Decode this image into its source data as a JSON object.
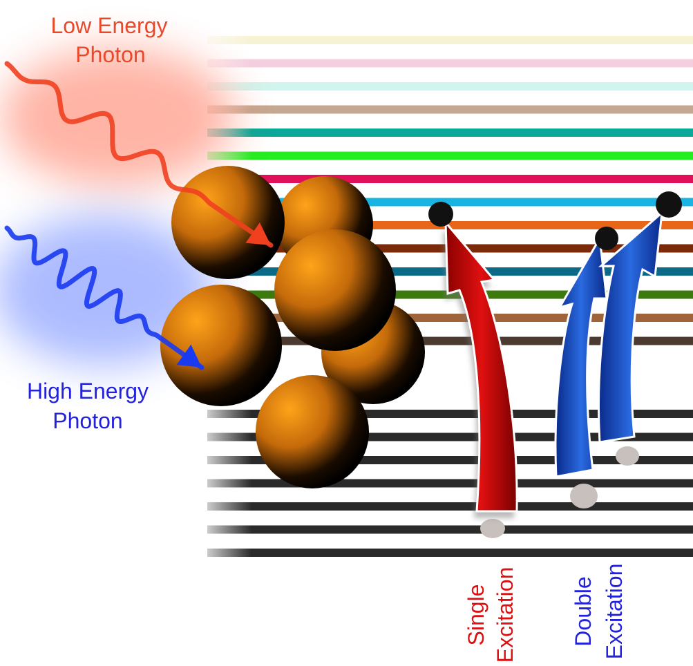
{
  "labels": {
    "low_energy_photon": [
      "Low Energy",
      "Photon"
    ],
    "high_energy_photon": [
      "High Energy",
      "Photon"
    ],
    "single_excitation": [
      "Single",
      "Excitation"
    ],
    "double_excitation": [
      "Double",
      "Excitation"
    ]
  }
}
